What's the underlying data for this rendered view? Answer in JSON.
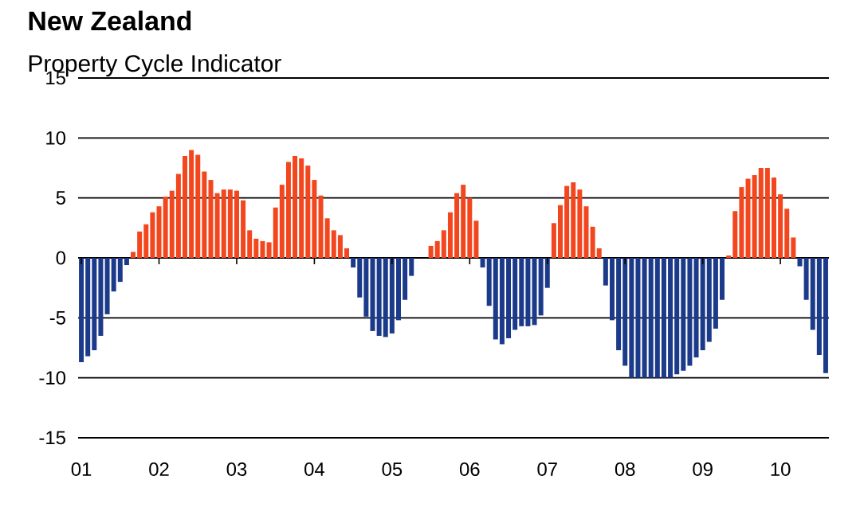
{
  "chart_data": {
    "type": "bar",
    "title": "New Zealand",
    "subtitle": "Property Cycle Indicator",
    "categories": [
      "01",
      null,
      null,
      null,
      null,
      null,
      null,
      null,
      null,
      null,
      null,
      null,
      "02",
      null,
      null,
      null,
      null,
      null,
      null,
      null,
      null,
      null,
      null,
      null,
      "03",
      null,
      null,
      null,
      null,
      null,
      null,
      null,
      null,
      null,
      null,
      null,
      "04",
      null,
      null,
      null,
      null,
      null,
      null,
      null,
      null,
      null,
      null,
      null,
      "05",
      null,
      null,
      null,
      null,
      null,
      null,
      null,
      null,
      null,
      null,
      null,
      "06",
      null,
      null,
      null,
      null,
      null,
      null,
      null,
      null,
      null,
      null,
      null,
      "07",
      null,
      null,
      null,
      null,
      null,
      null,
      null,
      null,
      null,
      null,
      null,
      "08",
      null,
      null,
      null,
      null,
      null,
      null,
      null,
      null,
      null,
      null,
      null,
      "09",
      null,
      null,
      null,
      null,
      null,
      null,
      null,
      null,
      null,
      null,
      null,
      "10",
      null,
      null,
      null,
      null,
      null,
      null,
      null
    ],
    "values": [
      -8.7,
      -8.2,
      -7.7,
      -6.5,
      -4.7,
      -2.8,
      -2.0,
      -0.6,
      0.5,
      2.2,
      2.8,
      3.8,
      4.3,
      5.1,
      5.6,
      7.0,
      8.5,
      9.0,
      8.6,
      7.2,
      6.5,
      5.4,
      5.7,
      5.7,
      5.6,
      4.8,
      2.3,
      1.6,
      1.4,
      1.3,
      4.2,
      6.1,
      8.0,
      8.5,
      8.3,
      7.7,
      6.5,
      5.2,
      3.3,
      2.3,
      1.9,
      0.8,
      -0.8,
      -3.3,
      -4.9,
      -6.1,
      -6.5,
      -6.6,
      -6.3,
      -5.2,
      -3.5,
      -1.5,
      null,
      null,
      1.0,
      1.4,
      2.3,
      3.8,
      5.4,
      6.1,
      5.0,
      3.1,
      -0.8,
      -4.0,
      -6.8,
      -7.2,
      -6.7,
      -6.0,
      -5.7,
      -5.7,
      -5.6,
      -4.8,
      -2.5,
      2.9,
      4.4,
      6.0,
      6.3,
      5.7,
      4.3,
      2.6,
      0.8,
      -2.3,
      -5.2,
      -7.7,
      -9.0,
      -10.0,
      -10.0,
      -10.0,
      -10.0,
      -10.0,
      -10.0,
      -10.0,
      -9.7,
      -9.4,
      -9.0,
      -8.3,
      -7.7,
      -7.0,
      -5.9,
      -3.5,
      0.2,
      3.9,
      5.9,
      6.6,
      6.9,
      7.5,
      7.5,
      6.7,
      5.3,
      4.1,
      1.7,
      -0.7,
      -3.5,
      -6.0,
      -8.1,
      -9.6
    ],
    "colors": [
      "#1c3a8a",
      "#1c3a8a",
      "#1c3a8a",
      "#1c3a8a",
      "#1c3a8a",
      "#1c3a8a",
      "#1c3a8a",
      "#1c3a8a",
      "#f2461e",
      "#f2461e",
      "#f2461e",
      "#f2461e",
      "#f2461e",
      "#f2461e",
      "#f2461e",
      "#f2461e",
      "#f2461e",
      "#f2461e",
      "#f2461e",
      "#f2461e",
      "#f2461e",
      "#f2461e",
      "#f2461e",
      "#f2461e",
      "#f2461e",
      "#f2461e",
      "#f2461e",
      "#f2461e",
      "#f2461e",
      "#f2461e",
      "#f2461e",
      "#f2461e",
      "#f2461e",
      "#f2461e",
      "#f2461e",
      "#f2461e",
      "#f2461e",
      "#f2461e",
      "#f2461e",
      "#f2461e",
      "#f2461e",
      "#f2461e",
      "#1c3a8a",
      "#1c3a8a",
      "#1c3a8a",
      "#1c3a8a",
      "#1c3a8a",
      "#1c3a8a",
      "#1c3a8a",
      "#1c3a8a",
      "#1c3a8a",
      "#1c3a8a",
      "#1c3a8a",
      "#1c3a8a",
      "#f2461e",
      "#f2461e",
      "#f2461e",
      "#f2461e",
      "#f2461e",
      "#f2461e",
      "#f2461e",
      "#f2461e",
      "#1c3a8a",
      "#1c3a8a",
      "#1c3a8a",
      "#1c3a8a",
      "#1c3a8a",
      "#1c3a8a",
      "#1c3a8a",
      "#1c3a8a",
      "#1c3a8a",
      "#1c3a8a",
      "#1c3a8a",
      "#f2461e",
      "#f2461e",
      "#f2461e",
      "#f2461e",
      "#f2461e",
      "#f2461e",
      "#f2461e",
      "#f2461e",
      "#1c3a8a",
      "#1c3a8a",
      "#1c3a8a",
      "#1c3a8a",
      "#1c3a8a",
      "#1c3a8a",
      "#1c3a8a",
      "#1c3a8a",
      "#1c3a8a",
      "#1c3a8a",
      "#1c3a8a",
      "#1c3a8a",
      "#1c3a8a",
      "#1c3a8a",
      "#1c3a8a",
      "#1c3a8a",
      "#1c3a8a",
      "#1c3a8a",
      "#1c3a8a",
      "#f2461e",
      "#f2461e",
      "#f2461e",
      "#f2461e",
      "#f2461e",
      "#f2461e",
      "#f2461e",
      "#f2461e",
      "#f2461e",
      "#f2461e",
      "#f2461e",
      "#1c3a8a",
      "#1c3a8a",
      "#1c3a8a",
      "#1c3a8a",
      "#1c3a8a"
    ],
    "ylim": [
      -15,
      15
    ],
    "yticks": [
      15,
      10,
      5,
      0,
      -5,
      -10,
      -15
    ],
    "grid": "y"
  }
}
